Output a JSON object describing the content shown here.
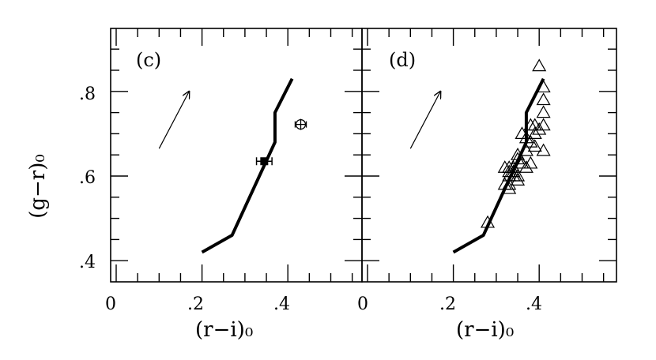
{
  "chart_data": [
    {
      "type": "line",
      "panel_label": "(c)",
      "xlabel": "(r−i)₀",
      "ylabel": "(g−r)₀",
      "xlim": [
        0,
        0.57
      ],
      "ylim": [
        0.35,
        0.95
      ],
      "x_ticks": [
        "0",
        ".2",
        ".4"
      ],
      "y_ticks": [
        ".4",
        ".6",
        ".8"
      ],
      "series": [
        {
          "kind": "line",
          "x": [
            0.2,
            0.27,
            0.37,
            0.37,
            0.41
          ],
          "y": [
            0.42,
            0.46,
            0.68,
            0.75,
            0.83
          ]
        },
        {
          "kind": "filled-square-with-xerror",
          "points": [
            {
              "x": 0.345,
              "y": 0.635,
              "xerr": 0.018
            }
          ]
        },
        {
          "kind": "open-circle-with-cross-errors",
          "points": [
            {
              "x": 0.43,
              "y": 0.722,
              "xerr": 0.013,
              "yerr": 0.013
            }
          ]
        }
      ],
      "reddening_arrow": {
        "from": [
          0.1,
          0.665
        ],
        "to": [
          0.17,
          0.8
        ]
      }
    },
    {
      "type": "scatter",
      "panel_label": "(d)",
      "xlabel": "(r−i)₀",
      "ylabel": "",
      "xlim": [
        0,
        0.57
      ],
      "ylim": [
        0.35,
        0.95
      ],
      "x_ticks": [
        "0",
        ".2",
        ".4"
      ],
      "y_ticks": [],
      "series": [
        {
          "kind": "line",
          "x": [
            0.2,
            0.27,
            0.37,
            0.37,
            0.41
          ],
          "y": [
            0.42,
            0.46,
            0.68,
            0.75,
            0.83
          ]
        },
        {
          "kind": "open-triangles",
          "x": [
            0.4,
            0.41,
            0.41,
            0.41,
            0.41,
            0.38,
            0.39,
            0.4,
            0.39,
            0.41,
            0.37,
            0.38,
            0.39,
            0.36,
            0.37,
            0.35,
            0.38,
            0.36,
            0.37,
            0.35,
            0.34,
            0.35,
            0.33,
            0.34,
            0.35,
            0.33,
            0.34,
            0.32,
            0.33,
            0.33,
            0.32,
            0.33,
            0.28
          ],
          "y": [
            0.86,
            0.81,
            0.78,
            0.75,
            0.72,
            0.72,
            0.72,
            0.71,
            0.7,
            0.66,
            0.69,
            0.68,
            0.67,
            0.7,
            0.66,
            0.65,
            0.63,
            0.63,
            0.62,
            0.64,
            0.62,
            0.6,
            0.62,
            0.6,
            0.59,
            0.61,
            0.61,
            0.62,
            0.6,
            0.58,
            0.58,
            0.57,
            0.49
          ]
        }
      ],
      "reddening_arrow": {
        "from": [
          0.1,
          0.665
        ],
        "to": [
          0.17,
          0.8
        ]
      }
    }
  ]
}
